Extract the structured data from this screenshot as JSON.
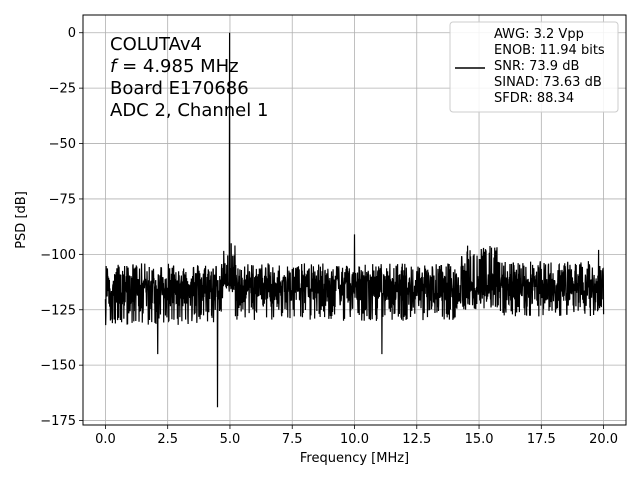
{
  "chart_data": {
    "type": "line",
    "xlabel": "Frequency [MHz]",
    "ylabel": "PSD [dB]",
    "xlim": [
      -0.9,
      20.9
    ],
    "ylim": [
      -177,
      8
    ],
    "xticks": [
      0.0,
      2.5,
      5.0,
      7.5,
      10.0,
      12.5,
      15.0,
      17.5,
      20.0
    ],
    "xtick_labels": [
      "0.0",
      "2.5",
      "5.0",
      "7.5",
      "10.0",
      "12.5",
      "15.0",
      "17.5",
      "20.0"
    ],
    "yticks": [
      0,
      -25,
      -50,
      -75,
      -100,
      -125,
      -150,
      -175
    ],
    "ytick_labels": [
      "0",
      "−25",
      "−50",
      "−75",
      "−100",
      "−125",
      "−150",
      "−175"
    ],
    "grid": true,
    "line_color": "#000000",
    "annotation": {
      "line1": "COLUTAv4",
      "line2_symbol": "f",
      "line2_rest": " = 4.985 MHz",
      "line3": "Board E170686",
      "line4": "ADC 2, Channel 1"
    },
    "legend": {
      "placement": "top-right",
      "entries": [
        "AWG: 3.2 Vpp",
        "ENOB: 11.94 bits",
        "SNR: 73.9 dB",
        "SINAD: 73.63 dB",
        "SFDR: 88.34"
      ]
    },
    "series": [
      {
        "noise_floor_db": -115,
        "segments": [
          {
            "x_start": 0.0,
            "x_end": 4.7,
            "min_db": -132,
            "max_db": -104
          },
          {
            "x_start": 5.2,
            "x_end": 14.2,
            "min_db": -130,
            "max_db": -104
          },
          {
            "x_start": 14.2,
            "x_end": 15.8,
            "min_db": -125,
            "max_db": -96
          },
          {
            "x_start": 15.8,
            "x_end": 20.0,
            "min_db": -128,
            "max_db": -103
          }
        ],
        "peaks": [
          {
            "x": 4.985,
            "y": 0
          },
          {
            "x": 4.5,
            "y": -169
          },
          {
            "x": 5.05,
            "y": -95
          },
          {
            "x": 5.2,
            "y": -96
          },
          {
            "x": 10.0,
            "y": -91
          },
          {
            "x": 2.1,
            "y": -145
          },
          {
            "x": 11.1,
            "y": -145
          },
          {
            "x": 19.8,
            "y": -98
          }
        ]
      }
    ]
  }
}
